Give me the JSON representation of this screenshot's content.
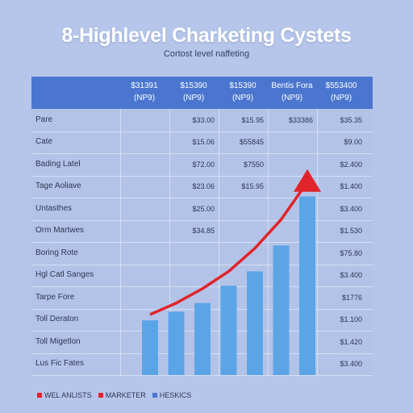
{
  "title": "8-Highlevel Charketing Cystets",
  "subtitle": "Cortost level naffeting",
  "colors": {
    "header": "#4a76cf",
    "bar": "#5ba5e6",
    "trend_line": "#e0242a",
    "background": "#b6c6ea"
  },
  "table": {
    "headers": [
      [
        "$31391",
        "(NP9)"
      ],
      [
        "$15390",
        "(NP9)"
      ],
      [
        "$15390",
        "(NP9)"
      ],
      [
        "Bentis Fora",
        "(NP9)"
      ],
      [
        "$553400",
        "(NP9)"
      ]
    ],
    "rows": [
      {
        "label": "Pare",
        "cells": [
          "",
          "$33.00",
          "$15.95",
          "$33386",
          "$35.35"
        ]
      },
      {
        "label": "Cate",
        "cells": [
          "",
          "$15.06",
          "$55845",
          "",
          "$9.00"
        ]
      },
      {
        "label": "Bading Latel",
        "cells": [
          "",
          "$72.00",
          "$7550",
          "",
          "$2.400"
        ]
      },
      {
        "label": "Tage Aoliave",
        "cells": [
          "",
          "$23.06",
          "$15.95",
          "",
          "$1.400"
        ]
      },
      {
        "label": "Untasthes",
        "cells": [
          "",
          "$25.00",
          "",
          "",
          "$3.400"
        ]
      },
      {
        "label": "Orm Martwes",
        "cells": [
          "",
          "$34.85",
          "",
          "",
          "$1.530"
        ]
      },
      {
        "label": "Boring Rote",
        "cells": [
          "",
          "",
          "",
          "",
          "$75.80"
        ]
      },
      {
        "label": "Hgl Catl Sanges",
        "cells": [
          "",
          "",
          "",
          "",
          "$3.400"
        ]
      },
      {
        "label": "Tarpe Fore",
        "cells": [
          "",
          "",
          "",
          "",
          "$1776"
        ]
      },
      {
        "label": "Toll Deraton",
        "cells": [
          "",
          "",
          "",
          "",
          "$1.100"
        ]
      },
      {
        "label": "Toll Migetlon",
        "cells": [
          "",
          "",
          "",
          "",
          "$1.420"
        ]
      },
      {
        "label": "Lus Fic Fates",
        "cells": [
          "",
          "",
          "",
          "",
          "$3.400"
        ]
      }
    ]
  },
  "legend": [
    {
      "label": "WEL ANLISTS",
      "color": "#e0242a"
    },
    {
      "label": "MARKETER",
      "color": "#e0242a"
    },
    {
      "label": "HESKICS",
      "color": "#4a76cf"
    }
  ],
  "chart_data": {
    "type": "bar",
    "title": "8-Highlevel Charketing Cystets",
    "subtitle": "Cortost level naffeting",
    "bar_values": [
      19,
      22,
      25,
      31,
      36,
      45,
      62
    ],
    "line_values": [
      21,
      25,
      30,
      36,
      44,
      54,
      67
    ],
    "ylim": [
      0,
      70
    ],
    "grid": true,
    "legend": "bottom-left"
  }
}
